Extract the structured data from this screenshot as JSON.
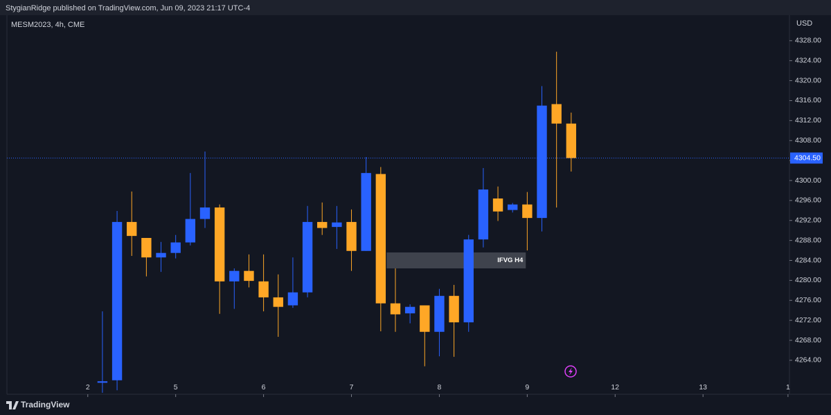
{
  "header": {
    "publisher": "StygianRidge published on TradingView.com, Jun 09, 2023 21:17 UTC-4",
    "brand": "TradingView"
  },
  "chart_data": {
    "type": "candlestick",
    "symbol": "MESM2023, 4h, CME",
    "currency": "USD",
    "up_color": "#2962ff",
    "down_color": "#ffa726",
    "categories": [
      null,
      null,
      null,
      null,
      null,
      null,
      null,
      null,
      null,
      null,
      null,
      null,
      null,
      null,
      null,
      null,
      null,
      null,
      null,
      null,
      null,
      null,
      null,
      null,
      null,
      null,
      null,
      null,
      null,
      null,
      null,
      null,
      null
    ],
    "series": [
      {
        "open": [
          4259.5,
          4260,
          4291.7,
          4288.5,
          4284.6,
          4285.5,
          4287.6,
          4292.3,
          4294.6,
          4279.8,
          4281.9,
          4279.8,
          4276.6,
          4275,
          4277.6,
          4291.7,
          4290.7,
          4291.7,
          4285.9,
          4301.3,
          4275.4,
          4273.4,
          4275,
          4269.7,
          4276.9,
          4271.6,
          4288.2,
          4296.4,
          4294.1,
          4295.2,
          4292.5,
          4315.3,
          4311.4
        ],
        "high": [
          4273.8,
          4293.9,
          4297.8,
          4288.5,
          4287.7,
          4289.1,
          4301.5,
          4305.8,
          4295.2,
          4282.4,
          4285.2,
          4285.2,
          4281.2,
          4284.6,
          4294.9,
          4295.6,
          4294.9,
          4294.2,
          4304.7,
          4302.7,
          4282.4,
          4275.2,
          4275,
          4278.3,
          4279.1,
          4289.1,
          4302.5,
          4298.8,
          4295.5,
          4297.7,
          4318.9,
          4325.8,
          4313.6
        ],
        "low": [
          4257.5,
          4258,
          4284.9,
          4280.8,
          4281.7,
          4284.4,
          4287,
          4290.5,
          4273.3,
          4274.3,
          4278.6,
          4273.8,
          4268.7,
          4274.5,
          4276.6,
          4289.1,
          4286.3,
          4281.9,
          4285.9,
          4269.8,
          4269.7,
          4271.4,
          4262.8,
          4264.8,
          4264.7,
          4269.7,
          4286.6,
          4291.9,
          4293.6,
          4286,
          4289.8,
          4294.6,
          4301.8
        ],
        "close": [
          4259.8,
          4291.7,
          4288.9,
          4284.6,
          4285.5,
          4287.6,
          4292.3,
          4294.6,
          4279.8,
          4281.9,
          4279.9,
          4276.6,
          4274.7,
          4277.6,
          4291.7,
          4290.5,
          4291.6,
          4285.9,
          4301.5,
          4275.4,
          4273.2,
          4274.7,
          4269.7,
          4276.9,
          4271.6,
          4288.2,
          4298.2,
          4293.8,
          4295.2,
          4292.5,
          4315,
          4311.4,
          4304.5
        ]
      }
    ],
    "xlim": [
      -6.52,
      46.9
    ],
    "xticks": [
      {
        "value": -1,
        "label": "2"
      },
      {
        "value": 5,
        "label": "5"
      },
      {
        "value": 11,
        "label": "6"
      },
      {
        "value": 17,
        "label": "7"
      },
      {
        "value": 23,
        "label": "8"
      },
      {
        "value": 29,
        "label": "9"
      },
      {
        "value": 35,
        "label": "12"
      },
      {
        "value": 41,
        "label": "13"
      },
      {
        "value": 46.8,
        "label": "1"
      }
    ],
    "ylim": [
      4257.2,
      4333.1
    ],
    "yticks": [
      {
        "value": 4264,
        "label": "4264.00"
      },
      {
        "value": 4268,
        "label": "4268.00"
      },
      {
        "value": 4272,
        "label": "4272.00"
      },
      {
        "value": 4276,
        "label": "4276.00"
      },
      {
        "value": 4280,
        "label": "4280.00"
      },
      {
        "value": 4284,
        "label": "4284.00"
      },
      {
        "value": 4288,
        "label": "4288.00"
      },
      {
        "value": 4292,
        "label": "4292.00"
      },
      {
        "value": 4296,
        "label": "4296.00"
      },
      {
        "value": 4300,
        "label": "4300.00"
      },
      {
        "value": 4304,
        "label": "4304.00"
      },
      {
        "value": 4308,
        "label": "4308.00"
      },
      {
        "value": 4312,
        "label": "4312.00"
      },
      {
        "value": 4316,
        "label": "4316.00"
      },
      {
        "value": 4320,
        "label": "4320.00"
      },
      {
        "value": 4324,
        "label": "4324.00"
      },
      {
        "value": 4328,
        "label": "4328.00"
      }
    ],
    "last_price": {
      "value": 4304.5,
      "label": "4304.50"
    },
    "zone": {
      "label": "IFVG H4",
      "y_range": [
        4282.4,
        4285.6
      ],
      "x_range": [
        19.4,
        28.9
      ]
    }
  }
}
